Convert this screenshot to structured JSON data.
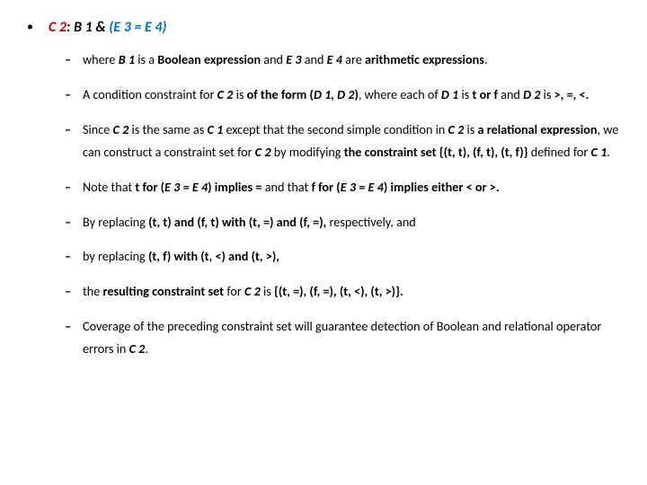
{
  "title": {
    "bullet": "•",
    "c2": "C 2",
    "sep": ": ",
    "b1": "B 1",
    "amp": " & ",
    "eq": "(E 3 = E 4)"
  },
  "items": [
    {
      "html": "where <span class='bi'>B 1</span> is a <b>Boolean expression</b> and <span class='bi'>E 3</span> and <span class='bi'>E 4</span> are <b>arithmetic expressions</b>."
    },
    {
      "html": "A condition constraint for <span class='bi'>C 2</span> is <b>of the form (<i>D 1, D 2</i>)</b>, where each of <span class='bi'>D 1</span> is <b>t or f</b> and <span class='bi'>D 2</span> is <b>&gt;, =, &lt;.</b>"
    },
    {
      "html": "Since <span class='bi'>C 2</span> is the same as <span class='bi'>C 1</span> except that the second simple condition in <span class='bi'>C 2</span> is <b>a relational expression</b>, we can construct a constraint set for <span class='bi'>C 2</span> by modifying <b>the constraint set {(t, t), (f, t), (t, f)}</b> defined for <span class='bi'>C 1</span>."
    },
    {
      "html": "Note that <b>t for (<i>E 3 = E 4</i>) implies =</b> and that <b>f for (<i>E 3 = E 4</i>) implies either &lt; or &gt;.</b>"
    },
    {
      "html": "By replacing <b>(t, t) and (f, t) with (t, =) and (f, =),</b> respectively, and"
    },
    {
      "html": "by replacing <b>(t, f) with (t, &lt;) and (t, &gt;),</b>"
    },
    {
      "html": "the <b>resulting constraint set</b> for <span class='bi'>C 2</span> is <b>{(t, =), (f, =), (t, &lt;), (t, &gt;)}.</b>"
    },
    {
      "html": "Coverage of the preceding constraint set will guarantee detection of Boolean and relational operator errors in <span class='bi'>C 2</span>."
    }
  ]
}
